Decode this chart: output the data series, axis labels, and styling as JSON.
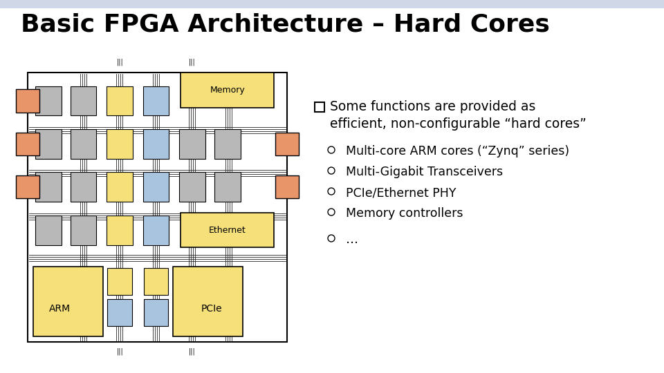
{
  "title": "Basic FPGA Architecture – Hard Cores",
  "title_fontsize": 26,
  "title_fontweight": "bold",
  "bg_color": "#f0f4f8",
  "slide_bg": "#ffffff",
  "bullet_header_line1": "Some functions are provided as",
  "bullet_header_line2": "efficient, non-configurable “hard cores”",
  "bullets": [
    "Multi-core ARM cores (“Zynq” series)",
    "Multi-Gigabit Transceivers",
    "PCIe/Ethernet PHY",
    "Memory controllers",
    "…"
  ],
  "colors": {
    "gray_block": "#b8b8b8",
    "yellow_block": "#f5e07a",
    "blue_block": "#a8c4de",
    "orange_io": "#e8956a",
    "white_bg": "#ffffff",
    "border": "#000000",
    "wire_color": "#222222"
  }
}
